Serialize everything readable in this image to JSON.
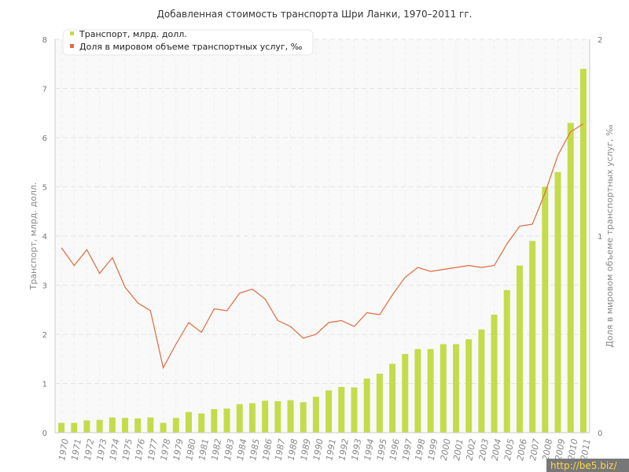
{
  "chart_data": {
    "type": "bar+line",
    "title": "Добавленная стоимость транспорта Шри Ланки, 1970–2011 гг.",
    "categories": [
      "1970",
      "1971",
      "1972",
      "1973",
      "1974",
      "1975",
      "1976",
      "1977",
      "1978",
      "1979",
      "1980",
      "1981",
      "1982",
      "1983",
      "1984",
      "1985",
      "1986",
      "1987",
      "1988",
      "1989",
      "1990",
      "1991",
      "1992",
      "1993",
      "1994",
      "1995",
      "1996",
      "1997",
      "1998",
      "1999",
      "2000",
      "2001",
      "2002",
      "2003",
      "2004",
      "2005",
      "2006",
      "2007",
      "2008",
      "2009",
      "2010",
      "2011"
    ],
    "series": [
      {
        "name": "Транспорт, млрд. долл.",
        "type": "bar",
        "axis": "left",
        "color": "#c5dc4a",
        "values": [
          0.2,
          0.2,
          0.25,
          0.26,
          0.31,
          0.3,
          0.29,
          0.31,
          0.2,
          0.3,
          0.42,
          0.39,
          0.48,
          0.49,
          0.58,
          0.6,
          0.65,
          0.64,
          0.66,
          0.62,
          0.73,
          0.86,
          0.93,
          0.92,
          1.1,
          1.2,
          1.4,
          1.6,
          1.7,
          1.7,
          1.8,
          1.8,
          1.9,
          2.1,
          2.4,
          2.9,
          3.4,
          3.9,
          5.0,
          5.3,
          6.3,
          7.4
        ]
      },
      {
        "name": "Доля в мировом объеме транспортных услуг, ‰",
        "type": "line",
        "axis": "right",
        "color": "#e06a3c",
        "values": [
          0.94,
          0.85,
          0.93,
          0.81,
          0.89,
          0.74,
          0.66,
          0.62,
          0.33,
          0.45,
          0.56,
          0.51,
          0.63,
          0.62,
          0.71,
          0.73,
          0.68,
          0.57,
          0.54,
          0.48,
          0.5,
          0.56,
          0.57,
          0.54,
          0.61,
          0.6,
          0.7,
          0.79,
          0.84,
          0.82,
          0.83,
          0.84,
          0.85,
          0.84,
          0.85,
          0.96,
          1.05,
          1.06,
          1.22,
          1.41,
          1.53,
          1.57
        ]
      }
    ],
    "ylabel": "Транспорт, млрд. долл.",
    "y2label": "Доля в мировом объеме транспортных услуг, ‰",
    "ylim": [
      0,
      8
    ],
    "y2lim": [
      0,
      2
    ],
    "yticks": [
      "0",
      "1",
      "2",
      "3",
      "4",
      "5",
      "6",
      "7",
      "8"
    ],
    "y2ticks": [
      "0",
      "1",
      "2"
    ],
    "grid": true,
    "legend_position": "top-left"
  },
  "watermark": "http://be5.biz/"
}
